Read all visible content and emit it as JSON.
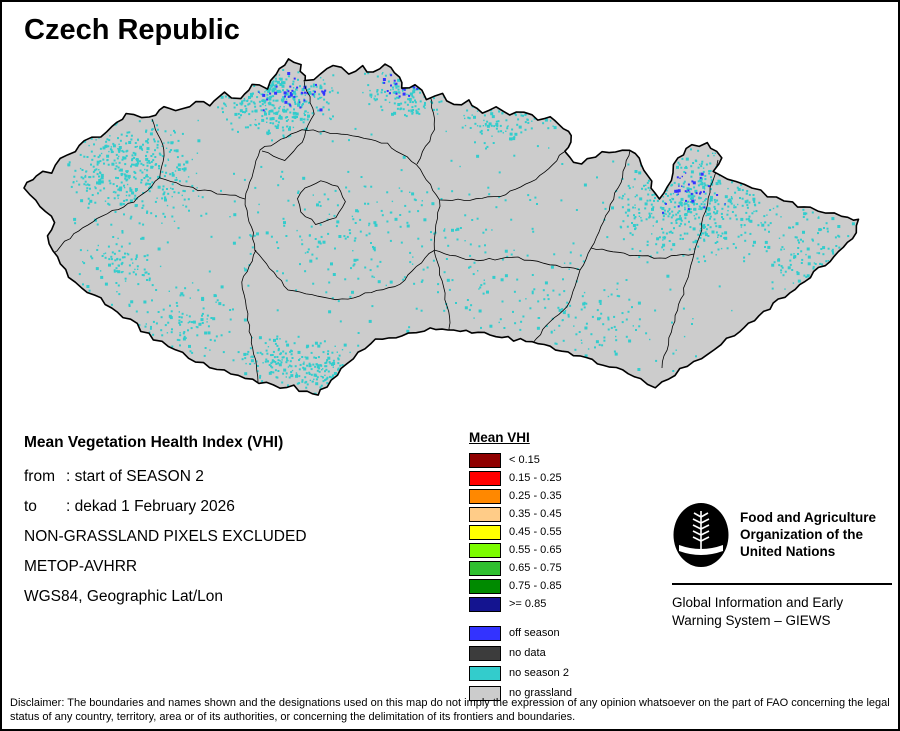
{
  "title": "Czech Republic",
  "info": {
    "heading": "Mean Vegetation Health Index (VHI)",
    "rows": [
      {
        "label": "from",
        "value": ": start of SEASON 2"
      },
      {
        "label": "to",
        "value": ": dekad 1 February 2026"
      },
      {
        "label": "NON-GRASSLAND PIXELS EXCLUDED",
        "value": ""
      },
      {
        "label": "METOP-AVHRR",
        "value": ""
      },
      {
        "label": "WGS84, Geographic Lat/Lon",
        "value": ""
      }
    ]
  },
  "legend": {
    "title": "Mean VHI",
    "classes": [
      {
        "color": "#8f0000",
        "label": "< 0.15"
      },
      {
        "color": "#ff0000",
        "label": "0.15 - 0.25"
      },
      {
        "color": "#ff8800",
        "label": "0.25 - 0.35"
      },
      {
        "color": "#ffcc88",
        "label": "0.35 - 0.45"
      },
      {
        "color": "#ffff00",
        "label": "0.45 - 0.55"
      },
      {
        "color": "#7cfc00",
        "label": "0.55 - 0.65"
      },
      {
        "color": "#2fbf2f",
        "label": "0.65 - 0.75"
      },
      {
        "color": "#008a00",
        "label": "0.75 - 0.85"
      },
      {
        "color": "#141490",
        "label": ">= 0.85"
      }
    ],
    "extras": [
      {
        "color": "#3333ff",
        "label": "off season"
      },
      {
        "color": "#3c3c3c",
        "label": "no data"
      },
      {
        "color": "#33cccc",
        "label": "no season 2"
      },
      {
        "color": "#cccccc",
        "label": "no grassland"
      }
    ]
  },
  "map": {
    "land_color": "#cccccc",
    "border_color": "#000000"
  },
  "fao": {
    "org_name": "Food and Agriculture\nOrganization of the\nUnited Nations",
    "giews_name": "Global Information and Early\nWarning System – GIEWS"
  },
  "disclaimer": "Disclaimer: The boundaries and names shown and the designations used on this map do not imply the expression of any opinion whatsoever on the part of FAO concerning the legal status of any country, territory, area or of its authorities, or concerning the delimitation of its frontiers and boundaries."
}
